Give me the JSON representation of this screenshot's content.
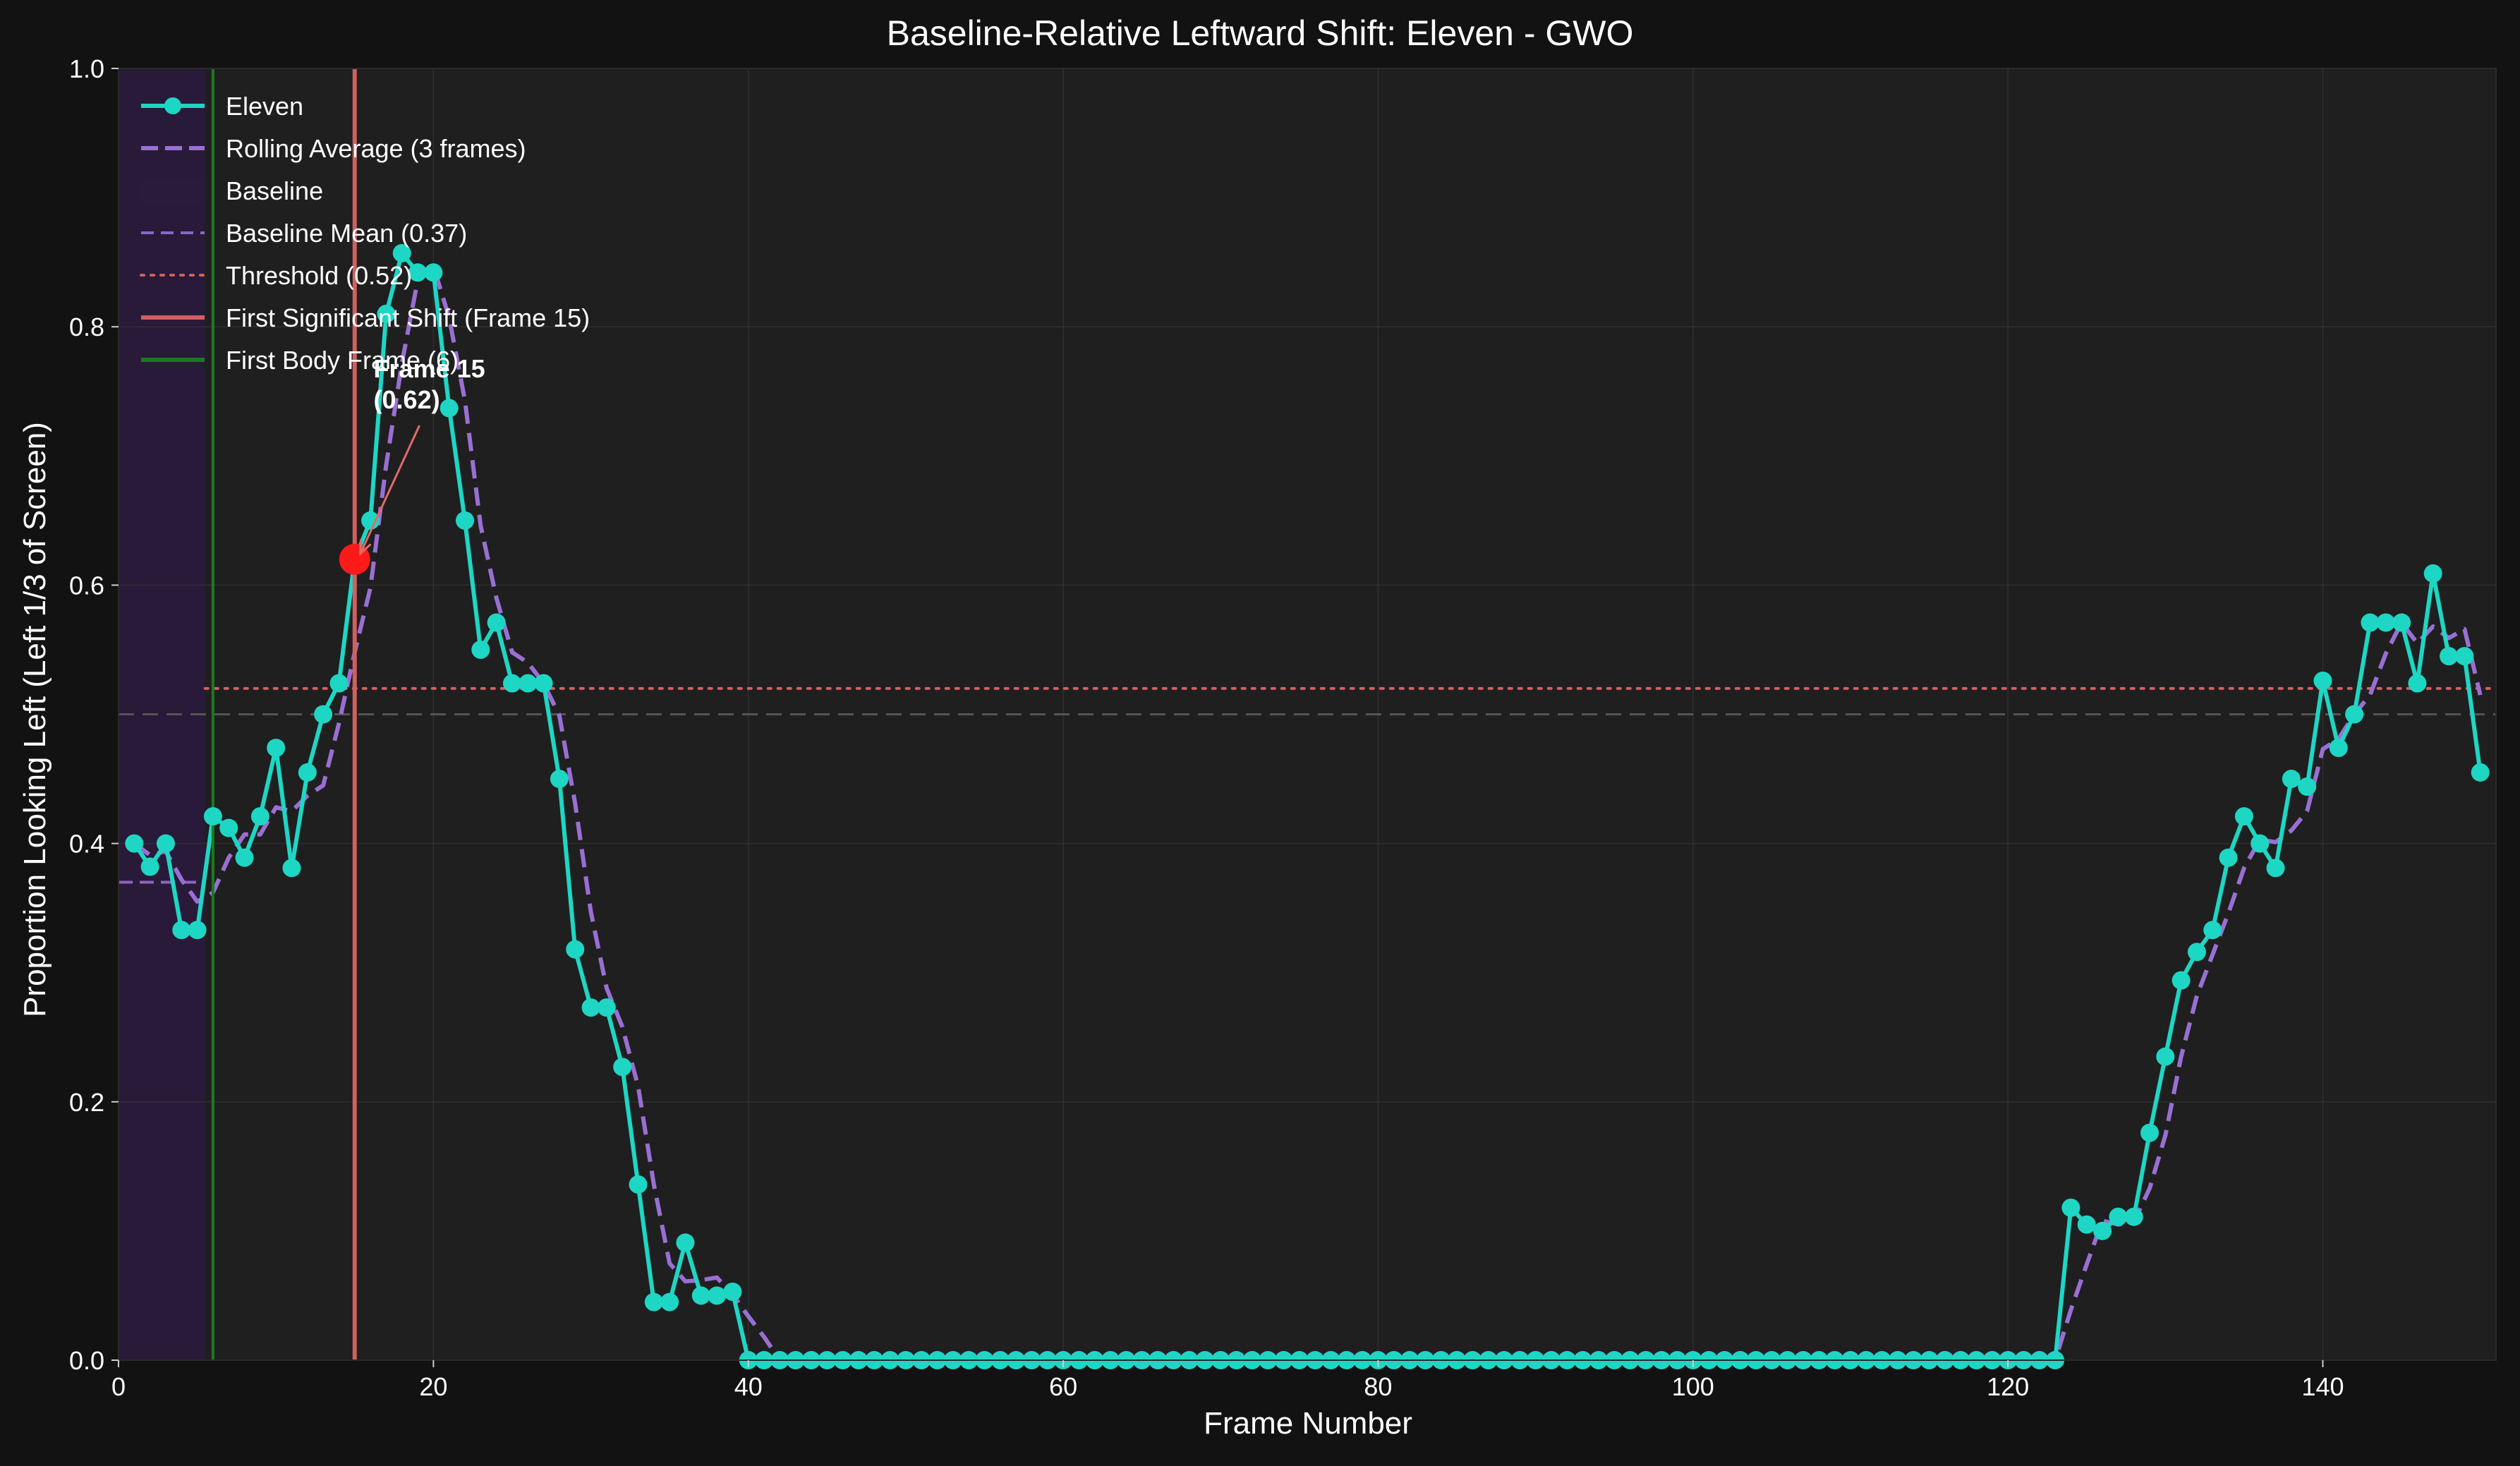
{
  "chart_data": {
    "type": "line",
    "title": "Baseline-Relative Leftward Shift: Eleven - GWO",
    "xlabel": "Frame Number",
    "ylabel": "Proportion Looking Left (Left 1/3 of Screen)",
    "xlim": [
      0,
      151
    ],
    "ylim": [
      0,
      1.0
    ],
    "x_ticks": [
      0,
      20,
      40,
      60,
      80,
      100,
      120,
      140
    ],
    "y_ticks": [
      0.0,
      0.2,
      0.4,
      0.6,
      0.8,
      1.0
    ],
    "x_tick_labels": [
      "0",
      "20",
      "40",
      "60",
      "80",
      "100",
      "120",
      "140"
    ],
    "y_tick_labels": [
      "0.0",
      "0.2",
      "0.4",
      "0.6",
      "0.8",
      "1.0"
    ],
    "grid": true,
    "legend_position": "top-left",
    "series": [
      {
        "name": "Eleven",
        "style": "line-markers",
        "color": "#1ed6c4",
        "x": [
          1,
          2,
          3,
          4,
          5,
          6,
          7,
          8,
          9,
          10,
          11,
          12,
          13,
          14,
          15,
          16,
          17,
          18,
          19,
          20,
          21,
          22,
          23,
          24,
          25,
          26,
          27,
          28,
          29,
          30,
          31,
          32,
          33,
          34,
          35,
          36,
          37,
          38,
          39,
          40,
          41,
          42,
          43,
          44,
          45,
          46,
          47,
          48,
          49,
          50,
          51,
          52,
          53,
          54,
          55,
          56,
          57,
          58,
          59,
          60,
          61,
          62,
          63,
          64,
          65,
          66,
          67,
          68,
          69,
          70,
          71,
          72,
          73,
          74,
          75,
          76,
          77,
          78,
          79,
          80,
          81,
          82,
          83,
          84,
          85,
          86,
          87,
          88,
          89,
          90,
          91,
          92,
          93,
          94,
          95,
          96,
          97,
          98,
          99,
          100,
          101,
          102,
          103,
          104,
          105,
          106,
          107,
          108,
          109,
          110,
          111,
          112,
          113,
          114,
          115,
          116,
          117,
          118,
          119,
          120,
          121,
          122,
          123,
          124,
          125,
          126,
          127,
          128,
          129,
          130,
          131,
          132,
          133,
          134,
          135,
          136,
          137,
          138,
          139,
          140,
          141,
          142,
          143,
          144,
          145,
          146,
          147,
          148,
          149,
          150
        ],
        "y": [
          0.4,
          0.382,
          0.4,
          0.333,
          0.333,
          0.421,
          0.412,
          0.389,
          0.421,
          0.474,
          0.381,
          0.455,
          0.5,
          0.524,
          0.62,
          0.65,
          0.81,
          0.857,
          0.842,
          0.842,
          0.737,
          0.65,
          0.55,
          0.571,
          0.524,
          0.524,
          0.524,
          0.45,
          0.318,
          0.273,
          0.273,
          0.227,
          0.136,
          0.045,
          0.045,
          0.091,
          0.05,
          0.05,
          0.053,
          0,
          0,
          0,
          0,
          0,
          0,
          0,
          0,
          0,
          0,
          0,
          0,
          0,
          0,
          0,
          0,
          0,
          0,
          0,
          0,
          0,
          0,
          0,
          0,
          0,
          0,
          0,
          0,
          0,
          0,
          0,
          0,
          0,
          0,
          0,
          0,
          0,
          0,
          0,
          0,
          0,
          0,
          0,
          0,
          0,
          0,
          0,
          0,
          0,
          0,
          0,
          0,
          0,
          0,
          0,
          0,
          0,
          0,
          0,
          0,
          0,
          0,
          0,
          0,
          0,
          0,
          0,
          0,
          0,
          0,
          0,
          0,
          0,
          0,
          0,
          0,
          0,
          0,
          0,
          0,
          0,
          0,
          0,
          0,
          0.118,
          0.105,
          0.1,
          0.111,
          0.111,
          0.176,
          0.235,
          0.294,
          0.316,
          0.333,
          0.389,
          0.421,
          0.4,
          0.381,
          0.45,
          0.444,
          0.526,
          0.474,
          0.5,
          0.571,
          0.571,
          0.571,
          0.524,
          0.609,
          0.545,
          0.545,
          0.455
        ]
      },
      {
        "name": "Rolling Average (3 frames)",
        "style": "dashed",
        "color": "#9a6fd4",
        "x": [
          1,
          2,
          3,
          4,
          5,
          6,
          7,
          8,
          9,
          10,
          11,
          12,
          13,
          14,
          15,
          16,
          17,
          18,
          19,
          20,
          21,
          22,
          23,
          24,
          25,
          26,
          27,
          28,
          29,
          30,
          31,
          32,
          33,
          34,
          35,
          36,
          37,
          38,
          39,
          40,
          41,
          42,
          43,
          44,
          45,
          46,
          47,
          48,
          49,
          50,
          51,
          52,
          53,
          54,
          55,
          56,
          57,
          58,
          59,
          60,
          61,
          62,
          63,
          64,
          65,
          66,
          67,
          68,
          69,
          70,
          71,
          72,
          73,
          74,
          75,
          76,
          77,
          78,
          79,
          80,
          81,
          82,
          83,
          84,
          85,
          86,
          87,
          88,
          89,
          90,
          91,
          92,
          93,
          94,
          95,
          96,
          97,
          98,
          99,
          100,
          101,
          102,
          103,
          104,
          105,
          106,
          107,
          108,
          109,
          110,
          111,
          112,
          113,
          114,
          115,
          116,
          117,
          118,
          119,
          120,
          121,
          122,
          123,
          124,
          125,
          126,
          127,
          128,
          129,
          130,
          131,
          132,
          133,
          134,
          135,
          136,
          137,
          138,
          139,
          140,
          141,
          142,
          143,
          144,
          145,
          146,
          147,
          148,
          149,
          150
        ],
        "y": [
          0.4,
          0.391,
          0.394,
          0.372,
          0.355,
          0.362,
          0.389,
          0.407,
          0.407,
          0.428,
          0.425,
          0.437,
          0.445,
          0.493,
          0.548,
          0.598,
          0.693,
          0.772,
          0.836,
          0.847,
          0.807,
          0.743,
          0.646,
          0.59,
          0.548,
          0.54,
          0.524,
          0.499,
          0.431,
          0.347,
          0.288,
          0.258,
          0.212,
          0.136,
          0.075,
          0.061,
          0.062,
          0.064,
          0.051,
          0.034,
          0.018,
          0,
          0,
          0,
          0,
          0,
          0,
          0,
          0,
          0,
          0,
          0,
          0,
          0,
          0,
          0,
          0,
          0,
          0,
          0,
          0,
          0,
          0,
          0,
          0,
          0,
          0,
          0,
          0,
          0,
          0,
          0,
          0,
          0,
          0,
          0,
          0,
          0,
          0,
          0,
          0,
          0,
          0,
          0,
          0,
          0,
          0,
          0,
          0,
          0,
          0,
          0,
          0,
          0,
          0,
          0,
          0,
          0,
          0,
          0,
          0,
          0,
          0,
          0,
          0,
          0,
          0,
          0,
          0,
          0,
          0,
          0,
          0,
          0,
          0,
          0,
          0,
          0,
          0,
          0,
          0,
          0,
          0,
          0.039,
          0.074,
          0.108,
          0.105,
          0.107,
          0.133,
          0.174,
          0.235,
          0.282,
          0.314,
          0.346,
          0.381,
          0.403,
          0.401,
          0.41,
          0.425,
          0.473,
          0.481,
          0.5,
          0.515,
          0.547,
          0.571,
          0.555,
          0.568,
          0.559,
          0.566,
          0.515
        ]
      },
      {
        "name": "Baseline Mean (0.37)",
        "style": "dashed-horizontal",
        "color": "#8a66c4",
        "x_range": [
          0,
          5.5
        ],
        "y": 0.37
      },
      {
        "name": "Threshold (0.52)",
        "style": "dotted-horizontal",
        "color": "#d06060",
        "x_range": [
          5.5,
          151
        ],
        "y": 0.52
      },
      {
        "name": "Baseline",
        "style": "shaded-region",
        "color": "#2a1a3c",
        "x_range": [
          0,
          5.5
        ]
      },
      {
        "name": "First Significant Shift (Frame 15)",
        "style": "vertical-line",
        "color": "#d06060",
        "x": 15
      },
      {
        "name": "First Body Frame (6)",
        "style": "vertical-line",
        "color": "#1d7a1d",
        "x": 6
      }
    ],
    "reference_line": {
      "y": 0.5,
      "style": "dashed",
      "color": "#555555"
    },
    "highlight_point": {
      "x": 15,
      "y": 0.62,
      "color": "#ff1a1a"
    },
    "annotation": {
      "lines": [
        "Frame 15",
        "(0.62)"
      ],
      "x": 16.2,
      "y": 0.74,
      "arrow_to": [
        15,
        0.62
      ]
    }
  }
}
